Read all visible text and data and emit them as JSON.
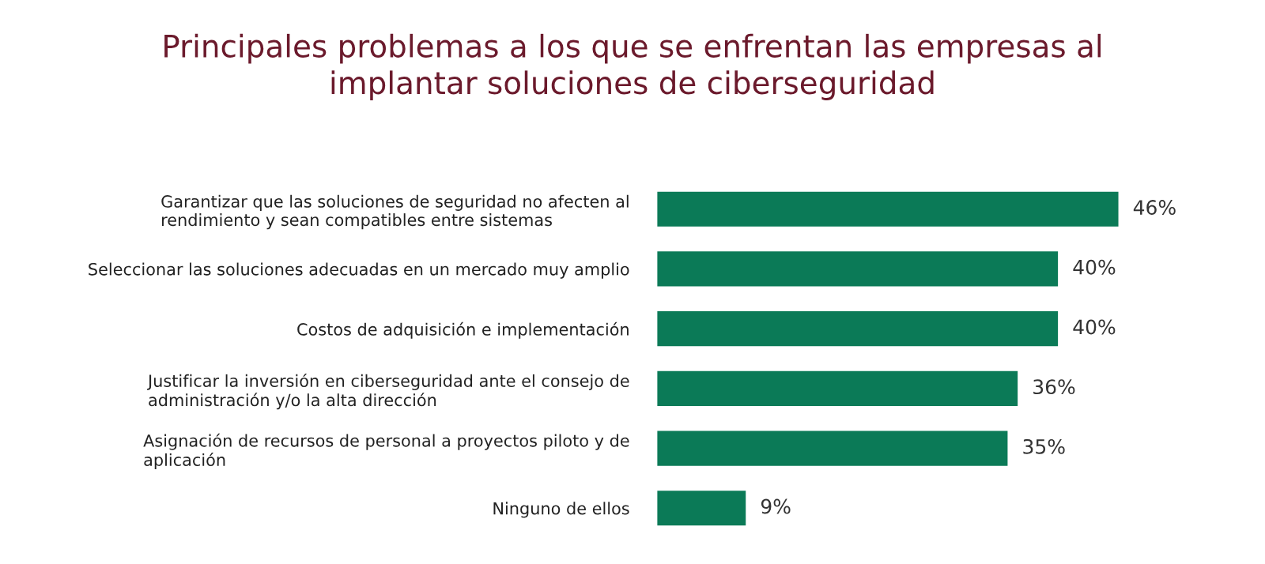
{
  "chart_data": {
    "type": "bar",
    "orientation": "horizontal",
    "title": "Principales problemas a los que se enfrentan las empresas al\nimplantar soluciones de ciberseguridad",
    "categories": [
      "Garantizar que las soluciones de seguridad no afecten al\nrendimiento y sean compatibles entre sistemas",
      "Seleccionar las soluciones adecuadas en un mercado muy amplio",
      "Costos de adquisición e implementación",
      "Justificar la inversión en ciberseguridad ante el consejo de\nadministración y/o la alta dirección",
      "Asignación de recursos de personal a proyectos piloto y de\naplicación",
      "Ninguno de ellos"
    ],
    "values": [
      46,
      40,
      40,
      36,
      35,
      9
    ],
    "value_labels": [
      "46%",
      "40%",
      "40%",
      "36%",
      "35%",
      "9%"
    ],
    "color": "#0b7a57",
    "grid": false,
    "legend": false
  }
}
